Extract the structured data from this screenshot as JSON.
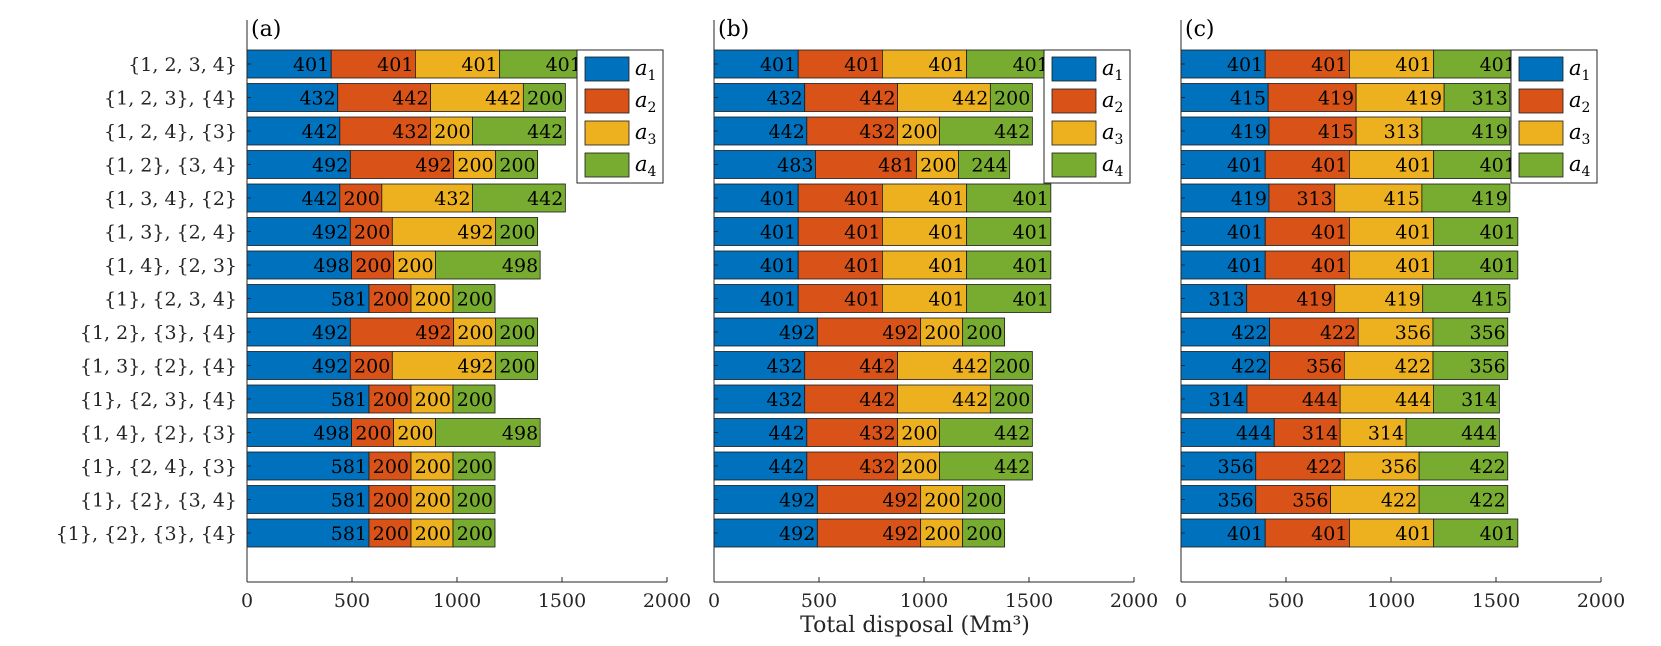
{
  "chart_data": {
    "type": "bar",
    "orientation": "horizontal",
    "stacked": true,
    "xlabel": "Total disposal (Mm³)",
    "xlim": [
      0,
      2000
    ],
    "xticks": [
      "0",
      "500",
      "1000",
      "1500",
      "2000"
    ],
    "categories": [
      "{1, 2, 3, 4}",
      "{1, 2, 3}, {4}",
      "{1, 2, 4}, {3}",
      "{1, 2}, {3, 4}",
      "{1, 3, 4}, {2}",
      "{1, 3}, {2, 4}",
      "{1, 4}, {2, 3}",
      "{1}, {2, 3, 4}",
      "{1, 2}, {3}, {4}",
      "{1, 3}, {2}, {4}",
      "{1}, {2, 3}, {4}",
      "{1, 4}, {2}, {3}",
      "{1}, {2, 4}, {3}",
      "{1}, {2}, {3, 4}",
      "{1}, {2}, {3}, {4}"
    ],
    "legend": {
      "position": "top-right",
      "entries": [
        {
          "base": "a",
          "sub": "1",
          "color": "#0072BD"
        },
        {
          "base": "a",
          "sub": "2",
          "color": "#D95319"
        },
        {
          "base": "a",
          "sub": "3",
          "color": "#EDB120"
        },
        {
          "base": "a",
          "sub": "4",
          "color": "#77AC30"
        }
      ]
    },
    "panels": [
      {
        "label": "(a)",
        "series": [
          {
            "name": "a1",
            "values": [
              401,
              432,
              442,
              492,
              442,
              492,
              498,
              581,
              492,
              492,
              581,
              498,
              581,
              581,
              581
            ]
          },
          {
            "name": "a2",
            "values": [
              401,
              442,
              432,
              492,
              200,
              200,
              200,
              200,
              492,
              200,
              200,
              200,
              200,
              200,
              200
            ]
          },
          {
            "name": "a3",
            "values": [
              401,
              442,
              200,
              200,
              432,
              492,
              200,
              200,
              200,
              492,
              200,
              200,
              200,
              200,
              200
            ]
          },
          {
            "name": "a4",
            "values": [
              401,
              200,
              442,
              200,
              442,
              200,
              498,
              200,
              200,
              200,
              200,
              498,
              200,
              200,
              200
            ]
          }
        ]
      },
      {
        "label": "(b)",
        "series": [
          {
            "name": "a1",
            "values": [
              401,
              432,
              442,
              483,
              401,
              401,
              401,
              401,
              492,
              432,
              432,
              442,
              442,
              492,
              492
            ]
          },
          {
            "name": "a2",
            "values": [
              401,
              442,
              432,
              481,
              401,
              401,
              401,
              401,
              492,
              442,
              442,
              432,
              432,
              492,
              492
            ]
          },
          {
            "name": "a3",
            "values": [
              401,
              442,
              200,
              200,
              401,
              401,
              401,
              401,
              200,
              442,
              442,
              200,
              200,
              200,
              200
            ]
          },
          {
            "name": "a4",
            "values": [
              401,
              200,
              442,
              244,
              401,
              401,
              401,
              401,
              200,
              200,
              200,
              442,
              442,
              200,
              200
            ]
          }
        ]
      },
      {
        "label": "(c)",
        "series": [
          {
            "name": "a1",
            "values": [
              401,
              415,
              419,
              401,
              419,
              401,
              401,
              313,
              422,
              422,
              314,
              444,
              356,
              356,
              401
            ]
          },
          {
            "name": "a2",
            "values": [
              401,
              419,
              415,
              401,
              313,
              401,
              401,
              419,
              422,
              356,
              444,
              314,
              422,
              356,
              401
            ]
          },
          {
            "name": "a3",
            "values": [
              401,
              419,
              313,
              401,
              415,
              401,
              401,
              419,
              356,
              422,
              444,
              314,
              356,
              422,
              401
            ]
          },
          {
            "name": "a4",
            "values": [
              401,
              313,
              419,
              401,
              419,
              401,
              401,
              415,
              356,
              356,
              314,
              444,
              422,
              422,
              401
            ]
          }
        ]
      }
    ],
    "grid": false
  }
}
